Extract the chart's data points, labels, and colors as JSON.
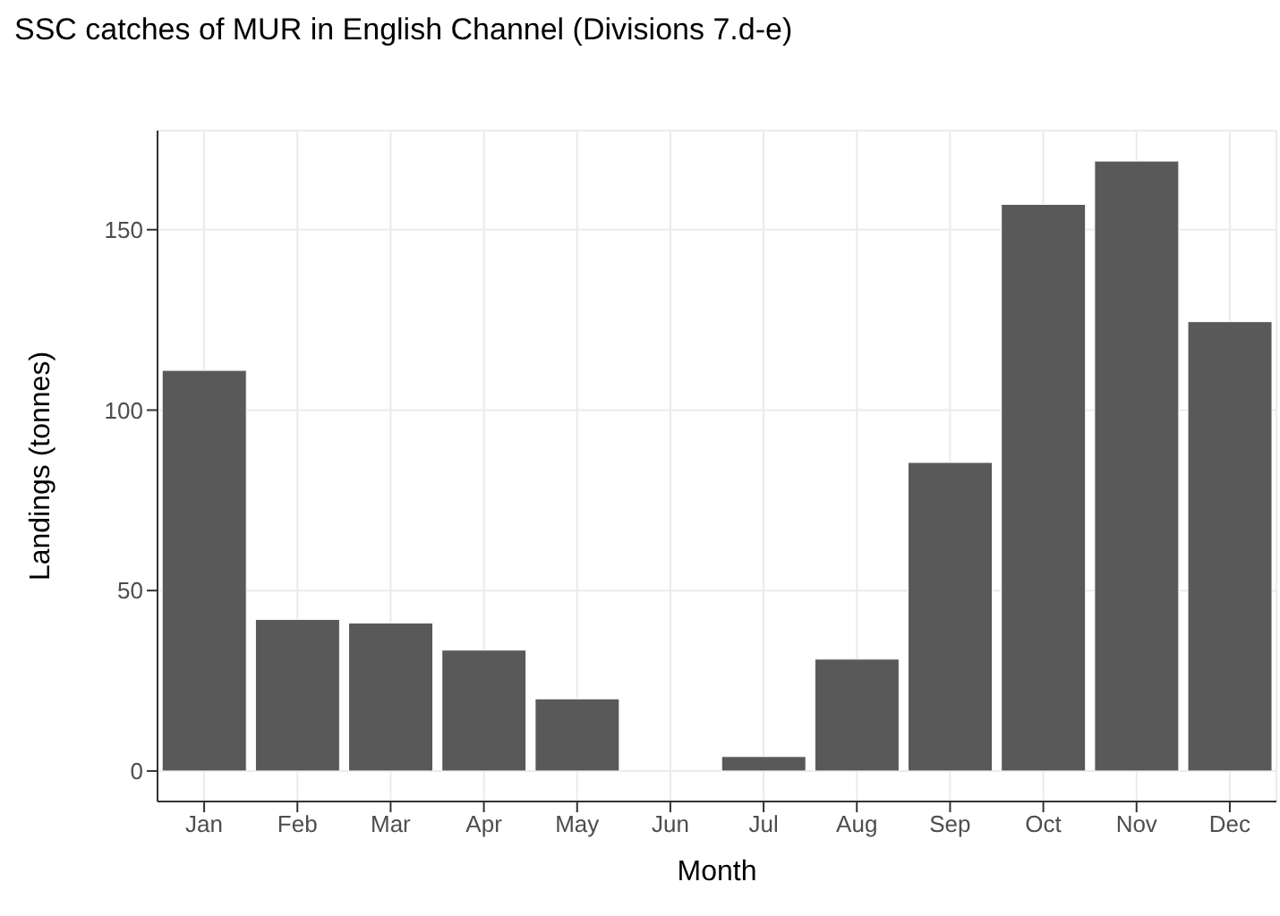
{
  "chart_data": {
    "type": "bar",
    "title": "SSC catches of MUR in English Channel (Divisions 7.d-e)",
    "xlabel": "Month",
    "ylabel": "Landings (tonnes)",
    "categories": [
      "Jan",
      "Feb",
      "Mar",
      "Apr",
      "May",
      "Jun",
      "Jul",
      "Aug",
      "Sep",
      "Oct",
      "Nov",
      "Dec"
    ],
    "values": [
      111,
      42,
      41,
      33.5,
      20,
      0,
      4,
      31,
      85.5,
      157,
      169,
      124.5
    ],
    "color": "#595959",
    "ylim": [
      -8.45,
      177.45
    ],
    "yticks": [
      0,
      50,
      100,
      150
    ],
    "grid": true
  }
}
